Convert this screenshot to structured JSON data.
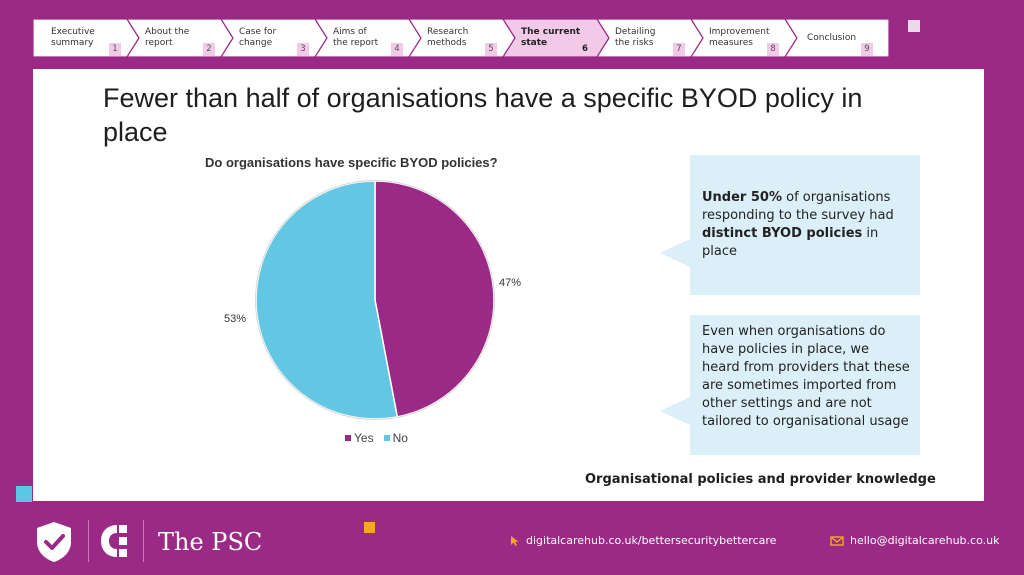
{
  "nav": {
    "items": [
      {
        "label": "Executive\nsummary",
        "num": "1"
      },
      {
        "label": "About the\nreport",
        "num": "2"
      },
      {
        "label": "Case for\nchange",
        "num": "3"
      },
      {
        "label": "Aims of\nthe report",
        "num": "4"
      },
      {
        "label": "Research\nmethods",
        "num": "5"
      },
      {
        "label": "The current\nstate",
        "num": "6",
        "active": true
      },
      {
        "label": "Detailing\nthe risks",
        "num": "7"
      },
      {
        "label": "Improvement\nmeasures",
        "num": "8"
      },
      {
        "label": "Conclusion",
        "num": "9"
      }
    ]
  },
  "slide": {
    "title": "Fewer than half of organisations have a specific BYOD policy in place"
  },
  "chart_data": {
    "type": "pie",
    "title": "Do organisations have specific BYOD policies?",
    "slices": [
      {
        "name": "Yes",
        "value": 47,
        "label": "47%",
        "color": "#9b2a86"
      },
      {
        "name": "No",
        "value": 53,
        "label": "53%",
        "color": "#63c6e2"
      }
    ],
    "legend_position": "bottom"
  },
  "callouts": {
    "first": {
      "bold1": "Under 50%",
      "text1": " of organisations responding to the survey had ",
      "bold2": "distinct BYOD policies",
      "text2": " in place"
    },
    "second": {
      "text": "Even when organisations do have policies in place, we heard from providers that these are sometimes imported from other settings and are not tailored to organisational usage"
    }
  },
  "footnote": "Organisational policies and provider knowledge",
  "footer": {
    "brand": "The PSC",
    "website": "digitalcarehub.co.uk/bettersecuritybettercare",
    "email": "hello@digitalcarehub.co.uk",
    "icons": {
      "website": "cursor-icon",
      "email": "envelope-icon"
    }
  },
  "colors": {
    "background": "#9b2a86",
    "accent_pink": "#f2c9e6",
    "accent_blue": "#63c6e2",
    "callout_bg": "#dbeff8",
    "orange": "#f7a823"
  }
}
